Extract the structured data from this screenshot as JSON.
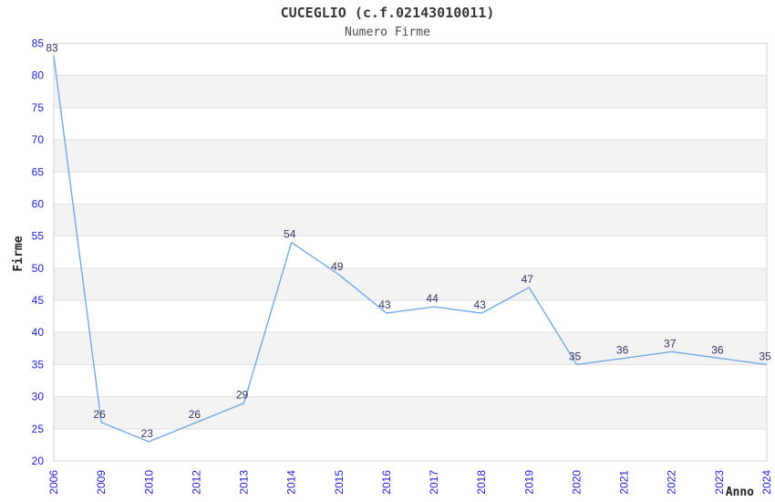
{
  "chart_data": {
    "type": "line",
    "title": "CUCEGLIO (c.f.02143010011)",
    "subtitle": "Numero Firme",
    "xlabel": "Anno",
    "ylabel": "Firme",
    "categories": [
      "2006",
      "2009",
      "2010",
      "2012",
      "2013",
      "2014",
      "2015",
      "2016",
      "2017",
      "2018",
      "2019",
      "2020",
      "2021",
      "2022",
      "2023",
      "2024"
    ],
    "values": [
      83,
      26,
      23,
      26,
      29,
      54,
      49,
      43,
      44,
      43,
      47,
      35,
      36,
      37,
      36,
      35
    ],
    "ylim": [
      20,
      85
    ],
    "ytick_step": 5,
    "yticks": [
      20,
      25,
      30,
      35,
      40,
      45,
      50,
      55,
      60,
      65,
      70,
      75,
      80,
      85
    ],
    "legend": "none",
    "grid": "horizontal-bands-alternating",
    "data_labels": "shown-above-points",
    "style": {
      "line_color": "#74A9E4",
      "tick_label_color": "#2323CE",
      "data_label_color": "#333366",
      "band_color": "#F3F3F3",
      "gridline_color": "#E2E2E2",
      "plot_border_color": "#D6D6D6",
      "background_color": "#FFFFFF"
    }
  }
}
